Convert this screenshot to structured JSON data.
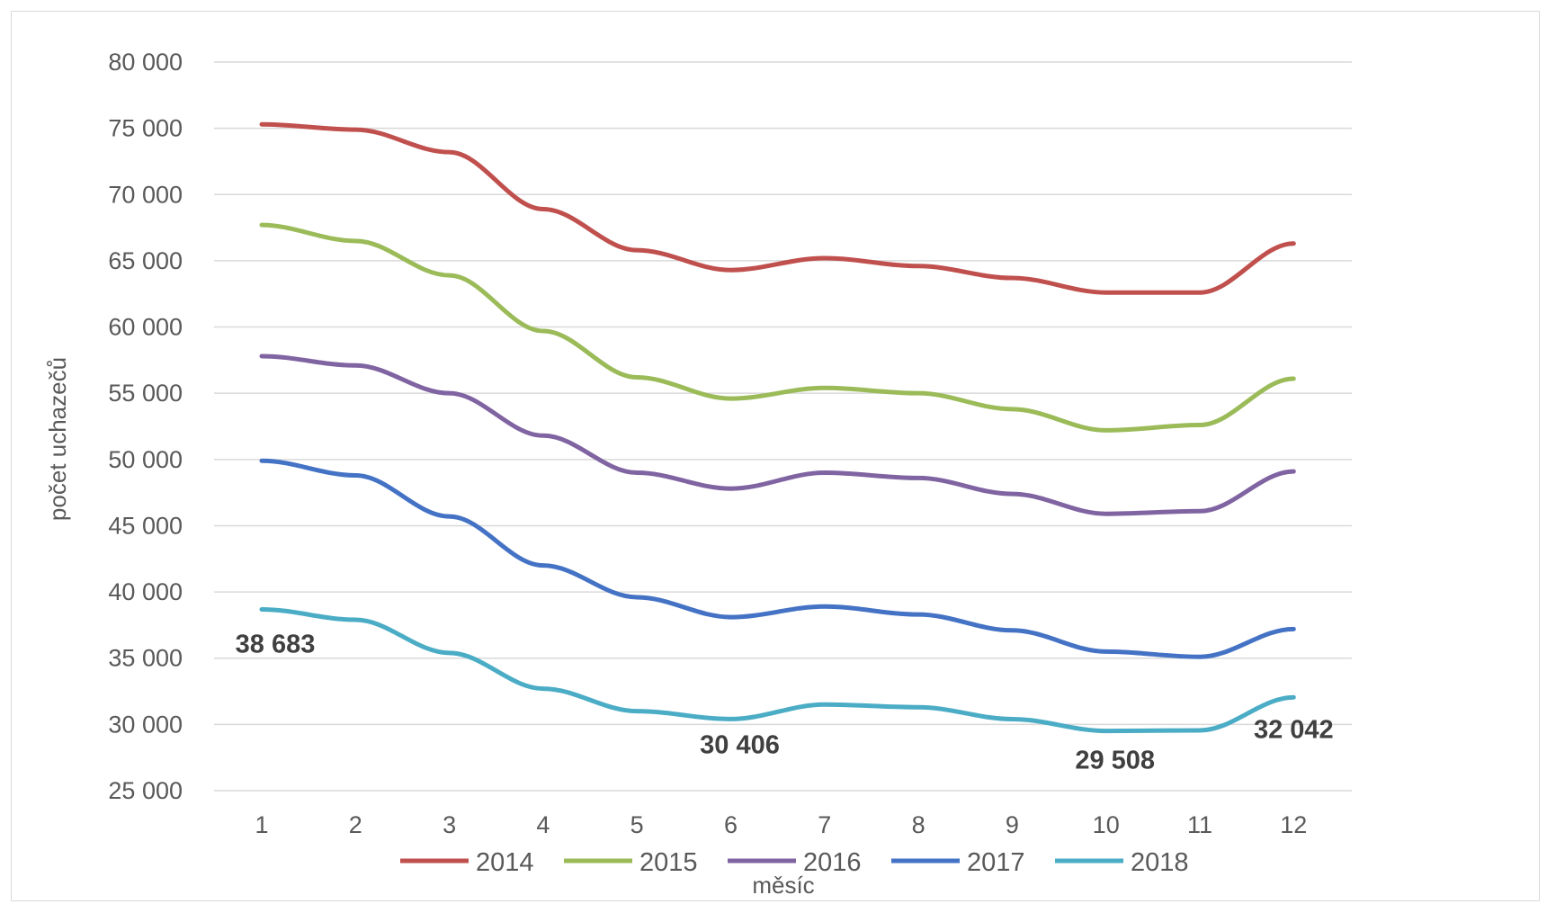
{
  "chart_data": {
    "type": "line",
    "xlabel": "měsíc",
    "ylabel": "počet uchazečů",
    "x": [
      1,
      2,
      3,
      4,
      5,
      6,
      7,
      8,
      9,
      10,
      11,
      12
    ],
    "ylim": [
      25000,
      80000
    ],
    "yticks": [
      25000,
      30000,
      35000,
      40000,
      45000,
      50000,
      55000,
      60000,
      65000,
      70000,
      75000,
      80000
    ],
    "ytick_labels": [
      "25 000",
      "30 000",
      "35 000",
      "40 000",
      "45 000",
      "50 000",
      "55 000",
      "60 000",
      "65 000",
      "70 000",
      "75 000",
      "80 000"
    ],
    "grid": true,
    "legend_position": "bottom",
    "series": [
      {
        "name": "2014",
        "color": "#c0504d",
        "values": [
          75300,
          74900,
          73200,
          68900,
          65800,
          64300,
          65200,
          64600,
          63700,
          62600,
          62600,
          66300
        ]
      },
      {
        "name": "2015",
        "color": "#9bbb59",
        "values": [
          67700,
          66500,
          63900,
          59700,
          56200,
          54600,
          55400,
          55000,
          53800,
          52200,
          52600,
          56100
        ]
      },
      {
        "name": "2016",
        "color": "#8064a2",
        "values": [
          57800,
          57100,
          55000,
          51800,
          49000,
          47800,
          49000,
          48600,
          47400,
          45900,
          46100,
          49100
        ]
      },
      {
        "name": "2017",
        "color": "#4472c4",
        "values": [
          49900,
          48800,
          45700,
          42000,
          39600,
          38100,
          38900,
          38300,
          37100,
          35500,
          35100,
          37200
        ]
      },
      {
        "name": "2018",
        "color": "#4bacc6",
        "values": [
          38683,
          37900,
          35400,
          32700,
          31000,
          30406,
          31500,
          31300,
          30400,
          29508,
          29550,
          32042
        ]
      }
    ],
    "annotations": [
      {
        "series": "2018",
        "x": 1,
        "text": "38 683"
      },
      {
        "series": "2018",
        "x": 6,
        "text": "30 406"
      },
      {
        "series": "2018",
        "x": 10,
        "text": "29 508"
      },
      {
        "series": "2018",
        "x": 12,
        "text": "32 042"
      }
    ]
  }
}
